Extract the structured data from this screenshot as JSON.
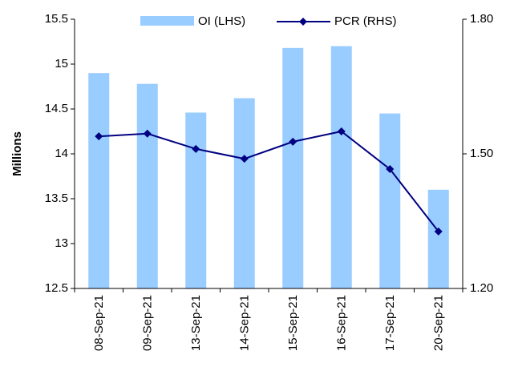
{
  "chart_data": {
    "type": "bar",
    "y_label": "Millions",
    "categories": [
      "08-Sep-21",
      "09-Sep-21",
      "13-Sep-21",
      "14-Sep-21",
      "15-Sep-21",
      "16-Sep-21",
      "17-Sep-21",
      "20-Sep-21"
    ],
    "series": [
      {
        "name": "OI (LHS)",
        "type": "bar",
        "color": "#99ccff",
        "values": [
          14.9,
          14.78,
          14.46,
          14.62,
          15.18,
          15.2,
          14.45,
          13.6
        ]
      },
      {
        "name": "PCR (RHS)",
        "type": "line",
        "axis": "y2",
        "color": "#000080",
        "values": [
          1.539,
          1.545,
          1.511,
          1.489,
          1.527,
          1.55,
          1.466,
          1.327
        ]
      }
    ],
    "ylim": [
      12.5,
      15.5
    ],
    "yticks": [
      12.5,
      13,
      13.5,
      14,
      14.5,
      15,
      15.5
    ],
    "y2lim": [
      1.2,
      1.8
    ],
    "y2ticks": [
      {
        "value": 1.2,
        "label": "1.20"
      },
      {
        "value": 1.5,
        "label": "1.50"
      },
      {
        "value": 1.8,
        "label": "1.80"
      }
    ],
    "legend": "top"
  }
}
